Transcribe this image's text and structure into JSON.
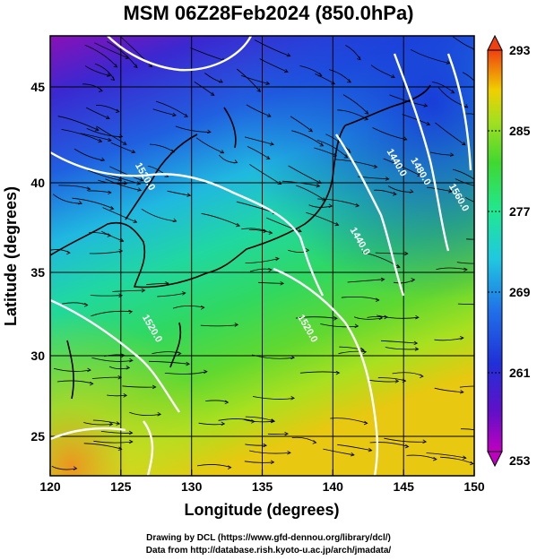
{
  "title": "MSM 06Z28Feb2024 (850.0hPa)",
  "x_axis": {
    "label": "Longitude (degrees)",
    "ticks": [
      "120",
      "125",
      "130",
      "135",
      "140",
      "145",
      "150"
    ],
    "range": [
      120,
      150
    ]
  },
  "y_axis": {
    "label": "Latitude  (degrees)",
    "ticks": [
      "25",
      "30",
      "35",
      "40",
      "45"
    ],
    "range": [
      22.4,
      47.6
    ]
  },
  "colorbar": {
    "labels": [
      "293",
      "285",
      "277",
      "269",
      "261",
      "253"
    ],
    "range": [
      253,
      293
    ],
    "colors": [
      "#9a00b0",
      "#2030d8",
      "#20a8e8",
      "#20e890",
      "#40d830",
      "#a0e020",
      "#f0d000",
      "#f05010"
    ]
  },
  "contours": [
    {
      "label": "1520.0",
      "lon": 126.0,
      "lat": 40.2
    },
    {
      "label": "1520.0",
      "lon": 126.5,
      "lat": 31.5
    },
    {
      "label": "1440.0",
      "lon": 143.8,
      "lat": 41.0
    },
    {
      "label": "1440.0",
      "lon": 141.2,
      "lat": 36.5
    },
    {
      "label": "1480.0",
      "lon": 145.5,
      "lat": 40.5
    },
    {
      "label": "1560.0",
      "lon": 148.2,
      "lat": 39.0
    },
    {
      "label": "1520.0",
      "lon": 137.5,
      "lat": 31.5
    }
  ],
  "credit": {
    "line1": "Drawing by DCL (https://www.gfd-dennou.org/library/dcl/)",
    "line2": "Data from http://database.rish.kyoto-u.ac.jp/arch/jmadata/"
  }
}
